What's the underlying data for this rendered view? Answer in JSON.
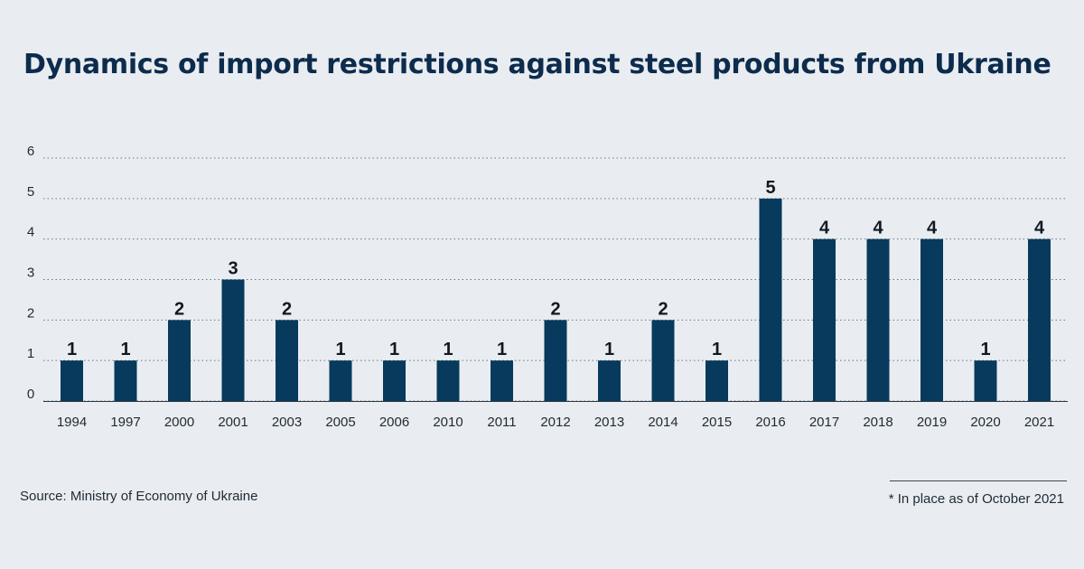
{
  "title": "Dynamics of import restrictions against steel products from Ukraine",
  "source": "Source: Ministry of Economy of Ukraine",
  "note": "* In place as of October 2021",
  "colors": {
    "bar": "#073a5c",
    "background": "#e9edf1",
    "title": "#0d2c4d",
    "grid": "#6b7680"
  },
  "chart_data": {
    "type": "bar",
    "categories": [
      "1994",
      "1997",
      "2000",
      "2001",
      "2003",
      "2005",
      "2006",
      "2010",
      "2011",
      "2012",
      "2013",
      "2014",
      "2015",
      "2016",
      "2017",
      "2018",
      "2019",
      "2020",
      "2021"
    ],
    "values": [
      1,
      1,
      2,
      3,
      2,
      1,
      1,
      1,
      1,
      2,
      1,
      2,
      1,
      5,
      4,
      4,
      4,
      1,
      4
    ],
    "y_ticks": [
      "0",
      "1",
      "2",
      "3",
      "4",
      "5",
      "6"
    ],
    "ylim": [
      0,
      6
    ],
    "grid": true,
    "data_labels": true
  }
}
